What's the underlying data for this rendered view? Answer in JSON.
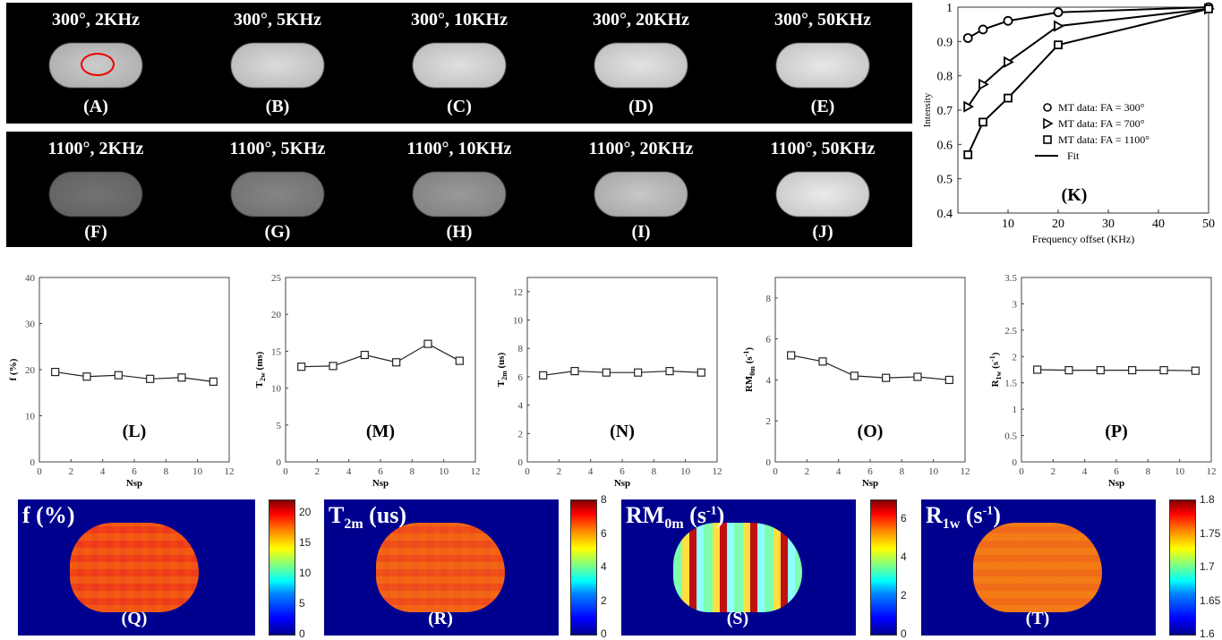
{
  "mt_images": {
    "row1": [
      {
        "caption": "300°, 2KHz",
        "label": "(A)",
        "brightness": 0.8
      },
      {
        "caption": "300°, 5KHz",
        "label": "(B)",
        "brightness": 0.86
      },
      {
        "caption": "300°, 10KHz",
        "label": "(C)",
        "brightness": 0.88
      },
      {
        "caption": "300°, 20KHz",
        "label": "(D)",
        "brightness": 0.89
      },
      {
        "caption": "300°, 50KHz",
        "label": "(E)",
        "brightness": 0.91
      }
    ],
    "row2": [
      {
        "caption": "1100°, 2KHz",
        "label": "(F)",
        "brightness": 0.45
      },
      {
        "caption": "1100°, 5KHz",
        "label": "(G)",
        "brightness": 0.52
      },
      {
        "caption": "1100°, 10KHz",
        "label": "(H)",
        "brightness": 0.6
      },
      {
        "caption": "1100°, 20KHz",
        "label": "(I)",
        "brightness": 0.78
      },
      {
        "caption": "1100°, 50KHz",
        "label": "(J)",
        "brightness": 0.92
      }
    ]
  },
  "chart_data": [
    {
      "id": "K",
      "type": "scatter",
      "label": "(K)",
      "xlabel": "Frequency offset (KHz)",
      "ylabel": "Intensity",
      "xlim": [
        0,
        50
      ],
      "ylim": [
        0.4,
        1.0
      ],
      "xticks": [
        "10",
        "20",
        "30",
        "40",
        "50"
      ],
      "yticks": [
        "0.4",
        "0.5",
        "0.6",
        "0.7",
        "0.8",
        "0.9",
        "1"
      ],
      "x": [
        2,
        5,
        10,
        20,
        50
      ],
      "series": [
        {
          "name": "MT data: FA = 300°",
          "marker": "circle",
          "values": [
            0.91,
            0.935,
            0.96,
            0.985,
            1.0
          ]
        },
        {
          "name": "MT data: FA = 700°",
          "marker": "triangle",
          "values": [
            0.71,
            0.775,
            0.84,
            0.945,
            0.995
          ]
        },
        {
          "name": "MT data: FA = 1100°",
          "marker": "square",
          "values": [
            0.57,
            0.665,
            0.735,
            0.89,
            0.995
          ]
        }
      ],
      "fit_label": "Fit",
      "legend": "center-right"
    },
    {
      "id": "L",
      "type": "line",
      "label": "(L)",
      "xlabel": "Nsp",
      "ylabel": "f (%)",
      "xlim": [
        0,
        12
      ],
      "ylim": [
        0,
        40
      ],
      "xticks": [
        "0",
        "2",
        "4",
        "6",
        "8",
        "10",
        "12"
      ],
      "yticks": [
        "0",
        "10",
        "20",
        "30",
        "40"
      ],
      "x": [
        1,
        3,
        5,
        7,
        9,
        11
      ],
      "values": [
        19.5,
        18.5,
        18.8,
        18.0,
        18.3,
        17.4
      ]
    },
    {
      "id": "M",
      "type": "line",
      "label": "(M)",
      "xlabel": "Nsp",
      "ylabel": "T2w (ms)",
      "xlim": [
        0,
        12
      ],
      "ylim": [
        0,
        25
      ],
      "xticks": [
        "0",
        "2",
        "4",
        "6",
        "8",
        "10",
        "12"
      ],
      "yticks": [
        "0",
        "5",
        "10",
        "15",
        "20",
        "25"
      ],
      "x": [
        1,
        3,
        5,
        7,
        9,
        11
      ],
      "values": [
        12.9,
        13.0,
        14.5,
        13.5,
        16.0,
        13.7
      ]
    },
    {
      "id": "N",
      "type": "line",
      "label": "(N)",
      "xlabel": "Nsp",
      "ylabel": "T2m (us)",
      "xlim": [
        0,
        12
      ],
      "ylim": [
        0,
        13
      ],
      "xticks": [
        "0",
        "2",
        "4",
        "6",
        "8",
        "10",
        "12"
      ],
      "yticks": [
        "0",
        "2",
        "4",
        "6",
        "8",
        "10",
        "12"
      ],
      "x": [
        1,
        3,
        5,
        7,
        9,
        11
      ],
      "values": [
        6.1,
        6.4,
        6.3,
        6.3,
        6.4,
        6.3
      ]
    },
    {
      "id": "O",
      "type": "line",
      "label": "(O)",
      "xlabel": "Nsp",
      "ylabel": "RM0m (s-1)",
      "xlim": [
        0,
        12
      ],
      "ylim": [
        0,
        9
      ],
      "xticks": [
        "0",
        "2",
        "4",
        "6",
        "8",
        "10",
        "12"
      ],
      "yticks": [
        "0",
        "2",
        "4",
        "6",
        "8"
      ],
      "x": [
        1,
        3,
        5,
        7,
        9,
        11
      ],
      "values": [
        5.2,
        4.9,
        4.2,
        4.1,
        4.15,
        4.0
      ]
    },
    {
      "id": "P",
      "type": "line",
      "label": "(P)",
      "xlabel": "Nsp",
      "ylabel": "R1w (s-1)",
      "xlim": [
        0,
        12
      ],
      "ylim": [
        0,
        3.5
      ],
      "xticks": [
        "0",
        "2",
        "4",
        "6",
        "8",
        "10",
        "12"
      ],
      "yticks": [
        "0",
        "0.5",
        "1",
        "1.5",
        "2",
        "2.5",
        "3",
        "3.5"
      ],
      "x": [
        1,
        3,
        5,
        7,
        9,
        11
      ],
      "values": [
        1.75,
        1.74,
        1.74,
        1.74,
        1.74,
        1.73
      ]
    }
  ],
  "maps": [
    {
      "title": "f (%)",
      "label": "(Q)",
      "cb_ticks": [
        "0",
        "5",
        "10",
        "15",
        "20"
      ],
      "fill": "#ee3a1a"
    },
    {
      "title": "T2m (us)",
      "label": "(R)",
      "cb_ticks": [
        "0",
        "2",
        "4",
        "6",
        "8"
      ],
      "fill": "#ee4a1c"
    },
    {
      "title": "RM0m (s-1)",
      "label": "(S)",
      "cb_ticks": [
        "0",
        "2",
        "4",
        "6"
      ],
      "fill": "#c81818"
    },
    {
      "title": "R1w (s-1)",
      "label": "(T)",
      "cb_ticks": [
        "1.6",
        "1.65",
        "1.7",
        "1.75",
        "1.8"
      ],
      "fill": "#f06a1c"
    }
  ]
}
